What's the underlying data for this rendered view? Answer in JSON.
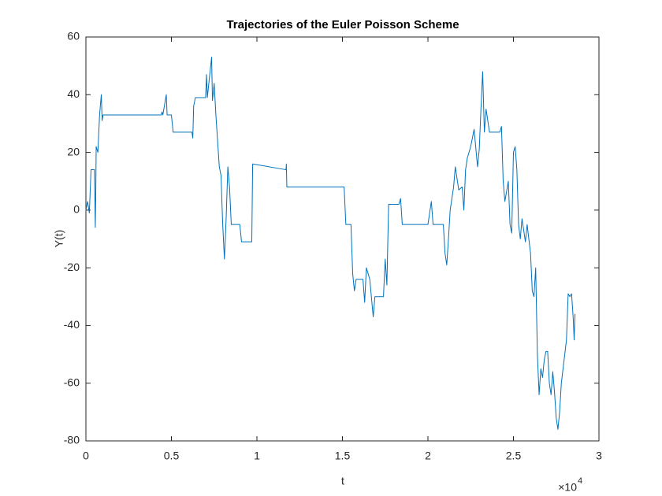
{
  "chart_data": {
    "type": "line",
    "title": "Trajectories of the Euler Poisson Scheme",
    "x_label": "t",
    "y_label": "Y(t)",
    "x_multiplier": {
      "base": "×10",
      "exponent": "4"
    },
    "xlim": [
      0,
      3
    ],
    "xticks": [
      0,
      0.5,
      1,
      1.5,
      2,
      2.5,
      3
    ],
    "ylim": [
      -80,
      60
    ],
    "yticks": [
      -80,
      -60,
      -40,
      -20,
      0,
      20,
      40,
      60
    ],
    "grid": false,
    "series": [
      {
        "name": "Y(t)",
        "color": "#0072bd",
        "x": [
          0,
          0.01,
          0.02,
          0.03,
          0.05,
          0.055,
          0.058,
          0.06,
          0.07,
          0.08,
          0.09,
          0.095,
          0.1,
          0.44,
          0.445,
          0.45,
          0.47,
          0.475,
          0.5,
          0.51,
          0.62,
          0.625,
          0.63,
          0.64,
          0.7,
          0.705,
          0.71,
          0.735,
          0.74,
          0.75,
          0.76,
          0.77,
          0.78,
          0.79,
          0.8,
          0.81,
          0.82,
          0.83,
          0.84,
          0.85,
          0.9,
          0.91,
          0.97,
          0.975,
          1.17,
          1.172,
          1.175,
          1.51,
          1.52,
          1.55,
          1.56,
          1.57,
          1.58,
          1.62,
          1.63,
          1.64,
          1.66,
          1.68,
          1.69,
          1.74,
          1.75,
          1.76,
          1.77,
          1.8,
          1.83,
          1.84,
          1.85,
          1.9,
          1.95,
          2.0,
          2.02,
          2.03,
          2.09,
          2.1,
          2.11,
          2.12,
          2.13,
          2.15,
          2.16,
          2.18,
          2.2,
          2.21,
          2.22,
          2.23,
          2.25,
          2.27,
          2.29,
          2.3,
          2.31,
          2.32,
          2.33,
          2.34,
          2.36,
          2.42,
          2.43,
          2.44,
          2.45,
          2.47,
          2.48,
          2.49,
          2.5,
          2.51,
          2.52,
          2.53,
          2.54,
          2.55,
          2.57,
          2.58,
          2.6,
          2.61,
          2.62,
          2.63,
          2.64,
          2.65,
          2.66,
          2.67,
          2.68,
          2.69,
          2.7,
          2.71,
          2.72,
          2.73,
          2.74,
          2.75,
          2.76,
          2.77,
          2.78,
          2.79,
          2.8,
          2.81,
          2.82,
          2.83,
          2.84,
          2.85,
          2.855,
          2.86
        ],
        "values": [
          0,
          3,
          -1,
          14,
          14,
          -6,
          8,
          22,
          20,
          33,
          40,
          31,
          33,
          33,
          34,
          33,
          40,
          33,
          33,
          27,
          27,
          25,
          36,
          39,
          39,
          47,
          39,
          53,
          38,
          44,
          33,
          24,
          15,
          12,
          -5,
          -17,
          -3,
          15,
          8,
          -5,
          -5,
          -11,
          -11,
          16,
          14,
          16,
          8,
          8,
          -5,
          -5,
          -22,
          -28,
          -24,
          -24,
          -32,
          -20,
          -24,
          -37,
          -30,
          -30,
          -17,
          -26,
          2,
          2,
          2,
          4,
          -5,
          -5,
          -5,
          -5,
          3,
          -5,
          -5,
          -15,
          -19,
          -10,
          0,
          8,
          15,
          7,
          8,
          0,
          14,
          18,
          22,
          28,
          15,
          21,
          35,
          48,
          27,
          35,
          27,
          27,
          29,
          10,
          3,
          10,
          -5,
          -8,
          20,
          22,
          14,
          -5,
          -10,
          -3,
          -11,
          -5,
          -15,
          -28,
          -30,
          -20,
          -50,
          -64,
          -55,
          -58,
          -52,
          -49,
          -49,
          -60,
          -64,
          -56,
          -63,
          -72,
          -76,
          -70,
          -60,
          -55,
          -50,
          -45,
          -29,
          -30,
          -29,
          -38,
          -45,
          -36
        ]
      }
    ]
  }
}
